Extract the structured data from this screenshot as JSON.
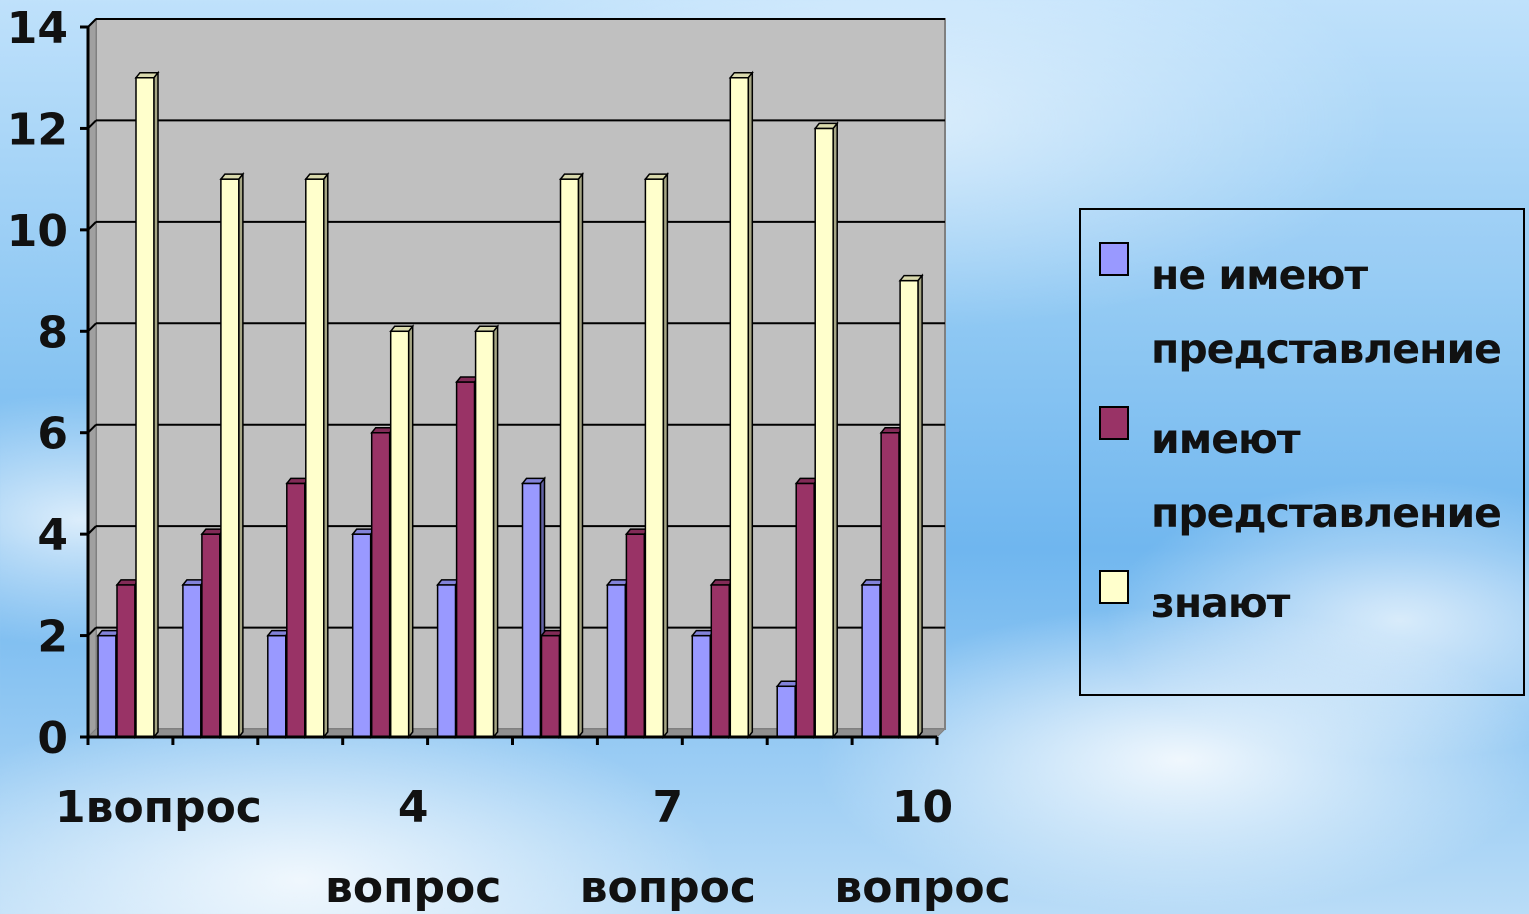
{
  "chart_data": {
    "type": "bar",
    "categories": [
      "1вопрос",
      "",
      "",
      "4 вопрос",
      "",
      "",
      "7 вопрос",
      "",
      "",
      "10 вопрос"
    ],
    "x_tick_labels": [
      {
        "category_index": 0,
        "lines": [
          "1вопрос"
        ]
      },
      {
        "category_index": 3,
        "lines": [
          "4",
          "вопрос"
        ]
      },
      {
        "category_index": 6,
        "lines": [
          "7",
          "вопрос"
        ]
      },
      {
        "category_index": 9,
        "lines": [
          "10",
          "вопрос"
        ]
      }
    ],
    "series": [
      {
        "name": "не имеют представление",
        "color": "#9999ff",
        "values": [
          2,
          3,
          2,
          4,
          3,
          5,
          3,
          2,
          1,
          3
        ]
      },
      {
        "name": "имеют представление",
        "color": "#993366",
        "values": [
          3,
          4,
          5,
          6,
          7,
          2,
          4,
          3,
          5,
          6
        ]
      },
      {
        "name": "знают",
        "color": "#ffffcc",
        "values": [
          13,
          11,
          11,
          8,
          8,
          11,
          11,
          13,
          12,
          9
        ]
      }
    ],
    "ylim": [
      0,
      14
    ],
    "yticks": [
      0,
      2,
      4,
      6,
      8,
      10,
      12,
      14
    ],
    "grid": true,
    "plot_background": "#c0c0c0",
    "legend_position": "right"
  },
  "legend": {
    "items": [
      {
        "lines": [
          "не имеют",
          "представление"
        ],
        "color": "#9999ff"
      },
      {
        "lines": [
          "имеют",
          "представление"
        ],
        "color": "#993366"
      },
      {
        "lines": [
          "знают"
        ],
        "color": "#ffffcc"
      }
    ]
  }
}
